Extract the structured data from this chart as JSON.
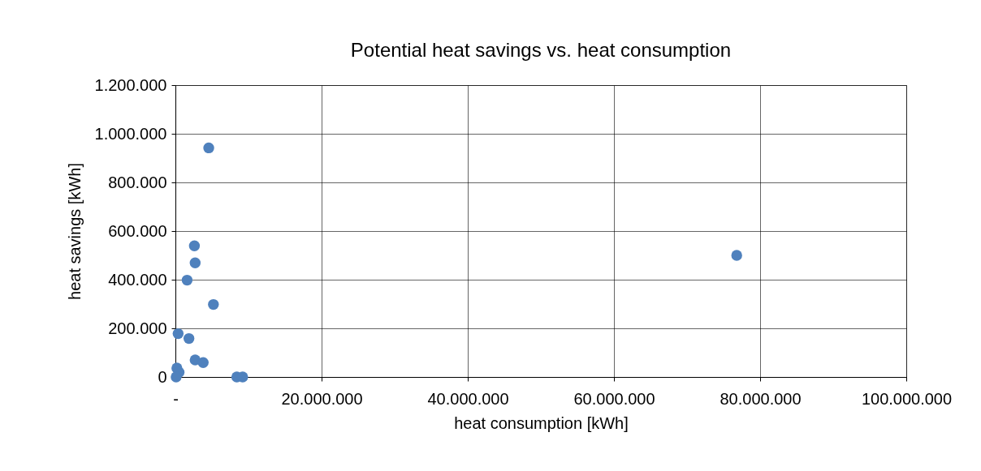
{
  "chart_data": {
    "type": "scatter",
    "title": "Potential heat savings vs. heat consumption",
    "xlabel": "heat consumption [kWh]",
    "ylabel": "heat savings [kWh]",
    "x": [
      4560000,
      2600000,
      2700000,
      1600000,
      5200000,
      370000,
      1850000,
      2700000,
      3800000,
      200000,
      500000,
      100000,
      8400000,
      9200000,
      76800000
    ],
    "series": [
      {
        "color": "#4f81bd",
        "values": [
          942000,
          539000,
          469000,
          398000,
          298000,
          178000,
          158000,
          70000,
          59000,
          37000,
          19000,
          0,
          0,
          0,
          500000
        ]
      }
    ],
    "xlim": [
      0,
      100000000
    ],
    "xticks": [
      {
        "value": 0,
        "label": "-"
      },
      {
        "value": 20000000,
        "label": "20.000.000"
      },
      {
        "value": 40000000,
        "label": "40.000.000"
      },
      {
        "value": 60000000,
        "label": "60.000.000"
      },
      {
        "value": 80000000,
        "label": "80.000.000"
      },
      {
        "value": 100000000,
        "label": "100.000.000"
      }
    ],
    "ylim": [
      0,
      1200000
    ],
    "yticks": [
      {
        "value": 0,
        "label": "0"
      },
      {
        "value": 200000,
        "label": "200.000"
      },
      {
        "value": 400000,
        "label": "400.000"
      },
      {
        "value": 600000,
        "label": "600.000"
      },
      {
        "value": 800000,
        "label": "800.000"
      },
      {
        "value": 1000000,
        "label": "1.000.000"
      },
      {
        "value": 1200000,
        "label": "1.200.000"
      }
    ],
    "grid": true,
    "marker": "circle"
  }
}
